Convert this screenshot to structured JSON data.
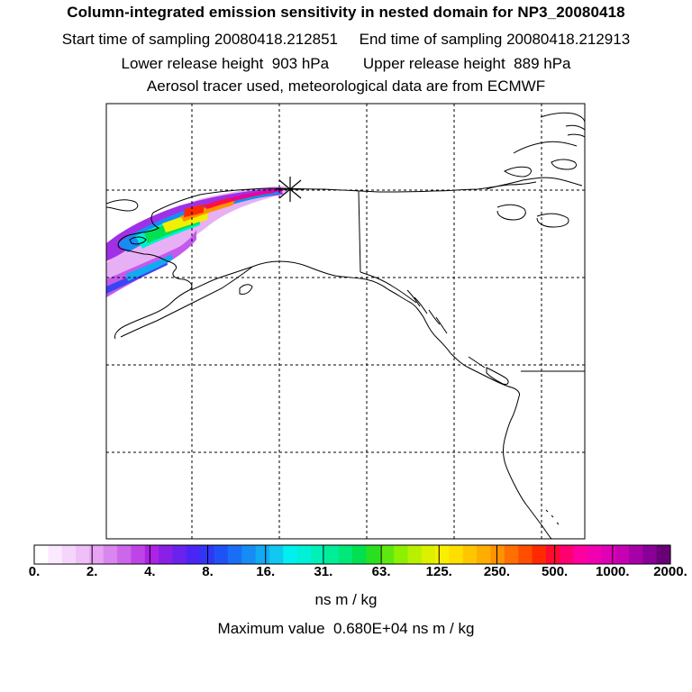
{
  "header": {
    "title": "Column-integrated emission sensitivity in nested domain for NP3_20080418",
    "line2": "Start time of sampling 20080418.212851     End time of sampling 20080418.212913",
    "line3": "Lower release height  903 hPa        Upper release height  889 hPa",
    "line4": "Aerosol tracer used, meteorological data are from ECMWF"
  },
  "colorbar": {
    "tick_labels": [
      "0.",
      "2.",
      "4.",
      "8.",
      "16.",
      "31.",
      "63.",
      "125.",
      "250.",
      "500.",
      "1000.",
      "2000."
    ],
    "colors": [
      "#ffffff",
      "#fbeaff",
      "#f5d5fb",
      "#efbff7",
      "#e6a4f2",
      "#d986ee",
      "#cc66ea",
      "#bf44e8",
      "#ad22e6",
      "#8a1fe6",
      "#6a22ee",
      "#4a26f4",
      "#2f36f6",
      "#1e52f6",
      "#1a6ef6",
      "#168cf4",
      "#12aaf2",
      "#10c8f0",
      "#00f0f0",
      "#00f0d8",
      "#00f0b8",
      "#00ee98",
      "#00e878",
      "#00e050",
      "#28e020",
      "#5ee810",
      "#8cf000",
      "#b8f000",
      "#dcf000",
      "#f8f000",
      "#ffde00",
      "#ffc600",
      "#ffae00",
      "#ff9200",
      "#ff7000",
      "#ff4e00",
      "#ff2a00",
      "#ff0a30",
      "#ff0070",
      "#ff00a0",
      "#f000b0",
      "#e000b8",
      "#c800b4",
      "#a800a8",
      "#880098",
      "#6a0078"
    ],
    "units": "ns m / kg"
  },
  "footer": {
    "max_value": "Maximum value  0.680E+04 ns m / kg"
  },
  "release_marker": "star-cross",
  "colors": {
    "frame": "#000000",
    "grid": "#000000",
    "coast": "#000000"
  }
}
